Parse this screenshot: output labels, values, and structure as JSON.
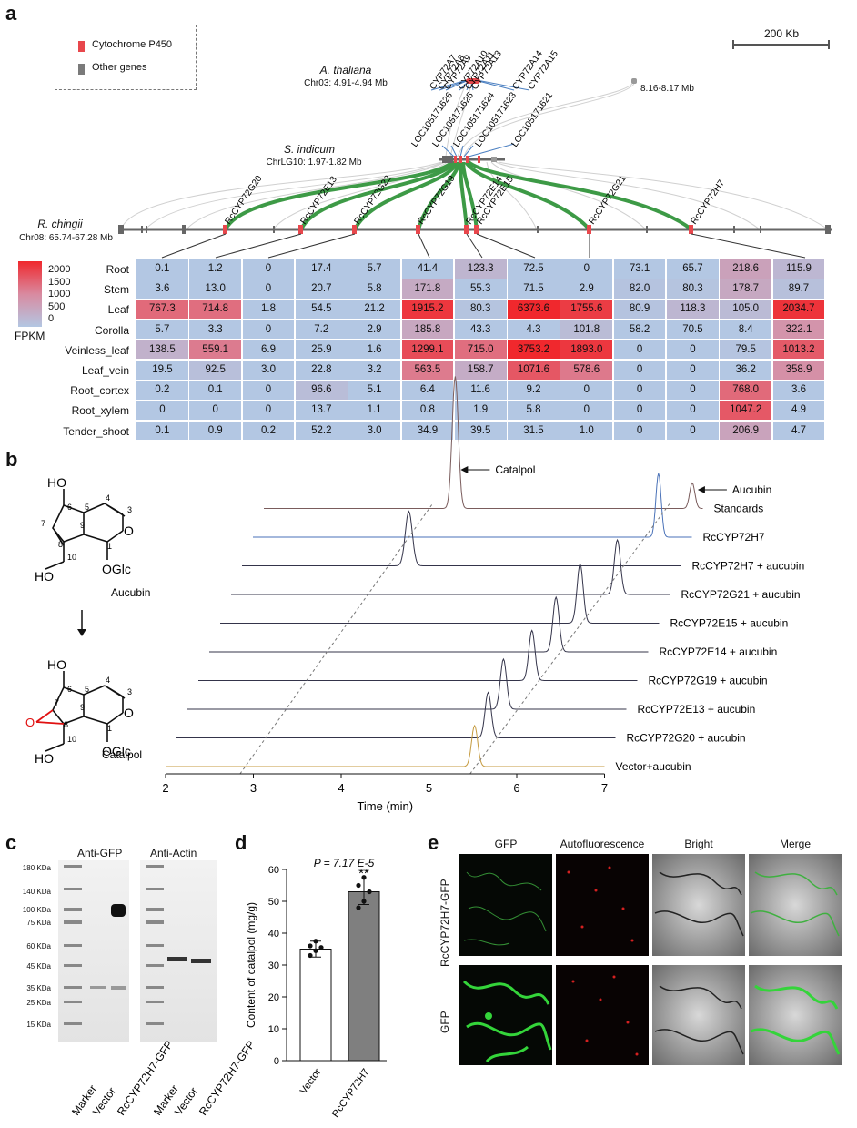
{
  "panels": {
    "a": "a",
    "b": "b",
    "c": "c",
    "d": "d",
    "e": "e"
  },
  "panel_a": {
    "legend": {
      "cyp": "Cytochrome P450",
      "other": "Other genes",
      "cyp_color": "#e8474c",
      "other_color": "#7a7a7a"
    },
    "scale_bar": "200 Kb",
    "athaliana": {
      "name": "A. thaliana",
      "region": "Chr03: 4.91-4.94 Mb"
    },
    "extra_region": "8.16-8.17 Mb",
    "sindicum": {
      "name": "S. indicum",
      "region": "ChrLG10: 1.97-1.82 Mb"
    },
    "rchingii": {
      "name": "R. chingii",
      "region": "Chr08: 65.74-67.28 Mb"
    },
    "athaliana_genes": [
      "CYP72A7",
      "CYP72A8",
      "CYP72A9",
      "CYP72A10",
      "CYP72A11",
      "CYP72A13",
      "CYP72A14",
      "CYP72A15"
    ],
    "sindicum_genes": [
      "LOC105171626",
      "LOC105171625",
      "LOC105171624",
      "LOC105171623",
      "LOC105171621"
    ],
    "rchingii_genes": [
      "RcCYP72G20",
      "RcCYP72E13",
      "RcCYP72G22",
      "RcCYP72G19",
      "RcCYP72E14",
      "RcCYP72E15",
      "RcCYP72G21",
      "RcCYP72H7"
    ],
    "colorbar": {
      "ticks": [
        "2000",
        "1500",
        "1000",
        "500",
        "0"
      ],
      "title": "FPKM",
      "max_color": "#f0282d",
      "min_color": "#b3c7e3"
    },
    "heatmap": {
      "rows": [
        "Root",
        "Stem",
        "Leaf",
        "Corolla",
        "Veinless_leaf",
        "Leaf_vein",
        "Root_cortex",
        "Root_xylem",
        "Tender_shoot"
      ],
      "values": [
        [
          "0.1",
          "1.2",
          "0",
          "17.4",
          "5.7",
          "41.4",
          "123.3",
          "72.5",
          "0",
          "73.1",
          "65.7",
          "218.6",
          "115.9"
        ],
        [
          "3.6",
          "13.0",
          "0",
          "20.7",
          "5.8",
          "171.8",
          "55.3",
          "71.5",
          "2.9",
          "82.0",
          "80.3",
          "178.7",
          "89.7"
        ],
        [
          "767.3",
          "714.8",
          "1.8",
          "54.5",
          "21.2",
          "1915.2",
          "80.3",
          "6373.6",
          "1755.6",
          "80.9",
          "118.3",
          "105.0",
          "2034.7"
        ],
        [
          "5.7",
          "3.3",
          "0",
          "7.2",
          "2.9",
          "185.8",
          "43.3",
          "4.3",
          "101.8",
          "58.2",
          "70.5",
          "8.4",
          "322.1"
        ],
        [
          "138.5",
          "559.1",
          "6.9",
          "25.9",
          "1.6",
          "1299.1",
          "715.0",
          "3753.2",
          "1893.0",
          "0",
          "0",
          "79.5",
          "1013.2"
        ],
        [
          "19.5",
          "92.5",
          "3.0",
          "22.8",
          "3.2",
          "563.5",
          "158.7",
          "1071.6",
          "578.6",
          "0",
          "0",
          "36.2",
          "358.9"
        ],
        [
          "0.2",
          "0.1",
          "0",
          "96.6",
          "5.1",
          "6.4",
          "11.6",
          "9.2",
          "0",
          "0",
          "0",
          "768.0",
          "3.6"
        ],
        [
          "0",
          "0",
          "0",
          "13.7",
          "1.1",
          "0.8",
          "1.9",
          "5.8",
          "0",
          "0",
          "0",
          "1047.2",
          "4.9"
        ],
        [
          "0.1",
          "0.9",
          "0.2",
          "52.2",
          "3.0",
          "34.9",
          "39.5",
          "31.5",
          "1.0",
          "0",
          "0",
          "206.9",
          "4.7"
        ]
      ]
    }
  },
  "panel_b": {
    "mol1": {
      "name": "Aucubin",
      "ho": "HO",
      "ho2": "HO",
      "oglc": "OGlc"
    },
    "mol2": {
      "name": "Catalpol",
      "ho": "HO",
      "ho2": "HO",
      "oglc": "OGlc"
    },
    "peak_catalpol": "Catalpol",
    "peak_aucubin": "Aucubin",
    "traces": [
      {
        "label": "Standards",
        "color": "#7a5c5c"
      },
      {
        "label": "RcCYP72H7",
        "color": "#4a72b8"
      },
      {
        "label": "RcCYP72H7 + aucubin",
        "color": "#34344a"
      },
      {
        "label": "RcCYP72G21 + aucubin",
        "color": "#34344a"
      },
      {
        "label": "RcCYP72E15 + aucubin",
        "color": "#34344a"
      },
      {
        "label": "RcCYP72E14 + aucubin",
        "color": "#34344a"
      },
      {
        "label": "RcCYP72G19 + aucubin",
        "color": "#34344a"
      },
      {
        "label": "RcCYP72E13 + aucubin",
        "color": "#34344a"
      },
      {
        "label": "RcCYP72G20 + aucubin",
        "color": "#34344a"
      },
      {
        "label": "Vector+aucubin",
        "color": "#c59a3e"
      }
    ],
    "xticks": [
      "2",
      "3",
      "4",
      "5",
      "6",
      "7"
    ],
    "xlabel": "Time (min)"
  },
  "panel_c": {
    "anti_gfp": "Anti-GFP",
    "anti_actin": "Anti-Actin",
    "markers": [
      "180 KDa",
      "140 KDa",
      "100 KDa",
      "75 KDa",
      "60 KDa",
      "45 KDa",
      "35 KDa",
      "25 KDa",
      "15 KDa"
    ],
    "lanes": [
      "Marker",
      "Vector",
      "RcCYP72H7-GFP",
      "Marker",
      "Vector",
      "RcCYP72H7-GFP"
    ]
  },
  "panel_d": {
    "chart_data": {
      "type": "bar",
      "categories": [
        "Vector",
        "RcCYP72H7"
      ],
      "values": [
        35,
        53
      ],
      "errors": [
        2.5,
        4
      ],
      "points": [
        [
          33,
          34.5,
          35.5,
          36,
          37.5
        ],
        [
          48,
          50,
          53,
          55,
          57.5
        ]
      ],
      "ylabel": "Content of catalpol (mg/g)",
      "ylim": [
        0,
        60
      ],
      "yticks": [
        "0",
        "10",
        "20",
        "30",
        "40",
        "50",
        "60"
      ],
      "pvalue": "P = 7.17 E-5",
      "sig": "**"
    },
    "bar_colors": [
      "#ffffff",
      "#7f7f7f"
    ]
  },
  "panel_e": {
    "columns": [
      "GFP",
      "Autofluorescence",
      "Bright",
      "Merge"
    ],
    "rows": [
      "RcCYP72H7-GFP",
      "GFP"
    ]
  }
}
